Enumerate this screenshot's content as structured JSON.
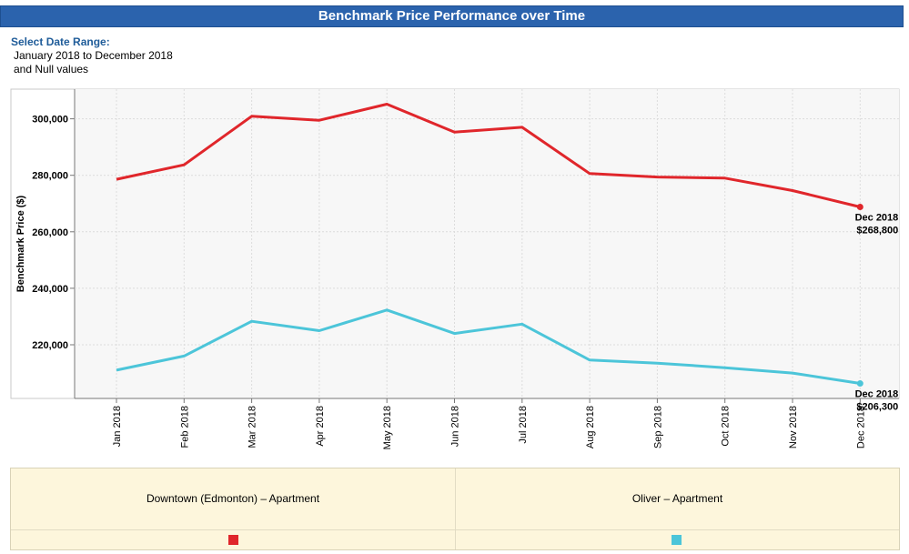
{
  "header": {
    "title": "Benchmark Price Performance over Time"
  },
  "date_range": {
    "label": "Select Date Range:",
    "value": "January 2018 to December 2018",
    "null_note": "and Null values"
  },
  "chart_data": {
    "type": "line",
    "title": "",
    "xlabel": "",
    "ylabel": "Benchmark Price ($)",
    "categories": [
      "Jan 2018",
      "Feb 2018",
      "Mar 2018",
      "Apr 2018",
      "May 2018",
      "Jun 2018",
      "Jul 2018",
      "Aug 2018",
      "Sep 2018",
      "Oct 2018",
      "Nov 2018",
      "Dec 2018"
    ],
    "yticks": [
      "220,000",
      "240,000",
      "260,000",
      "280,000",
      "300,000"
    ],
    "ytick_values": [
      220000,
      240000,
      260000,
      280000,
      300000
    ],
    "ylim": [
      201000,
      310500
    ],
    "grid": true,
    "legend": "bottom",
    "series": [
      {
        "name": "Downtown (Edmonton) – Apartment",
        "color": "#e0262b",
        "values": [
          278600,
          283700,
          300900,
          299500,
          305200,
          295300,
          297000,
          280600,
          279400,
          279000,
          274600,
          268800
        ],
        "end_label_date": "Dec 2018",
        "end_label_value": "$268,800"
      },
      {
        "name": "Oliver – Apartment",
        "color": "#4cc5d9",
        "values": [
          211000,
          216000,
          228300,
          225000,
          232300,
          224000,
          227300,
          214600,
          213500,
          211900,
          210000,
          206300
        ],
        "end_label_date": "Dec 2018",
        "end_label_value": "$206,300"
      }
    ]
  }
}
